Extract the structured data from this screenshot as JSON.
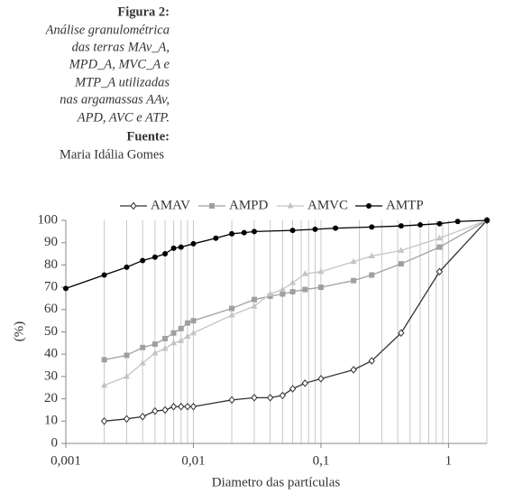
{
  "caption": {
    "figure": "Figura 2:",
    "text_lines": [
      "Análise granulométrica",
      "das terras MAv_A,",
      "MPD_A, MVC_A e",
      "MTP_A utilizadas",
      "nas argamassas AAv,",
      "APD, AVC e ATP."
    ],
    "source_label": "Fuente:",
    "source": "Maria Idália Gomes"
  },
  "chart_data": {
    "type": "line",
    "xlabel": "Diametro das partículas",
    "ylabel": "(%)",
    "xscale": "log",
    "xlim": [
      0.001,
      2
    ],
    "ylim": [
      0,
      100
    ],
    "xticks": [
      {
        "value": 0.001,
        "label": "0,001"
      },
      {
        "value": 0.01,
        "label": "0,01"
      },
      {
        "value": 0.1,
        "label": "0,1"
      },
      1
    ],
    "yticks": [
      0,
      10,
      20,
      30,
      40,
      50,
      60,
      70,
      80,
      90,
      100
    ],
    "grid": "x-minor",
    "legend": "top",
    "series": [
      {
        "name": "AMAV",
        "color": "#333333",
        "marker": "diamond",
        "x": [
          0.002,
          0.003,
          0.004,
          0.005,
          0.006,
          0.007,
          0.008,
          0.009,
          0.01,
          0.02,
          0.03,
          0.04,
          0.05,
          0.06,
          0.075,
          0.1,
          0.18,
          0.25,
          0.425,
          0.85,
          2
        ],
        "values": [
          10,
          11,
          12,
          14.5,
          15,
          16.5,
          16.5,
          16.5,
          16.5,
          19.5,
          20.5,
          20.5,
          21.5,
          24.5,
          27,
          29,
          33,
          37,
          49.5,
          77,
          100
        ]
      },
      {
        "name": "AMPD",
        "color": "#a0a0a0",
        "marker": "square",
        "x": [
          0.002,
          0.003,
          0.004,
          0.005,
          0.006,
          0.007,
          0.008,
          0.009,
          0.01,
          0.02,
          0.03,
          0.04,
          0.05,
          0.06,
          0.075,
          0.1,
          0.18,
          0.25,
          0.425,
          0.85,
          2
        ],
        "values": [
          37.5,
          39.5,
          43,
          44.5,
          47,
          49.5,
          51.5,
          54,
          55,
          60.5,
          64.5,
          66,
          67,
          68,
          69,
          70,
          73,
          75.5,
          80.5,
          88,
          100
        ]
      },
      {
        "name": "AMVC",
        "color": "#c4c4c4",
        "marker": "triangle",
        "x": [
          0.002,
          0.003,
          0.004,
          0.005,
          0.006,
          0.007,
          0.008,
          0.009,
          0.01,
          0.02,
          0.03,
          0.04,
          0.05,
          0.06,
          0.075,
          0.1,
          0.18,
          0.25,
          0.425,
          0.85,
          2
        ],
        "values": [
          26,
          30,
          36,
          40.5,
          42.5,
          45,
          46,
          48,
          49.5,
          57.5,
          61.5,
          67,
          69,
          72,
          76,
          77,
          81.5,
          84,
          86.5,
          92,
          100
        ]
      },
      {
        "name": "AMTP",
        "color": "#000000",
        "marker": "circle",
        "x": [
          0.001,
          0.002,
          0.003,
          0.004,
          0.005,
          0.006,
          0.007,
          0.008,
          0.01,
          0.015,
          0.02,
          0.025,
          0.03,
          0.06,
          0.09,
          0.13,
          0.25,
          0.425,
          0.6,
          0.85,
          1.18,
          2
        ],
        "values": [
          69.5,
          75.5,
          79,
          82,
          83.5,
          85,
          87.5,
          88,
          89.5,
          92,
          94,
          94.5,
          95,
          95.5,
          96,
          96.5,
          97,
          97.5,
          98,
          98.5,
          99.5,
          100
        ]
      }
    ]
  }
}
